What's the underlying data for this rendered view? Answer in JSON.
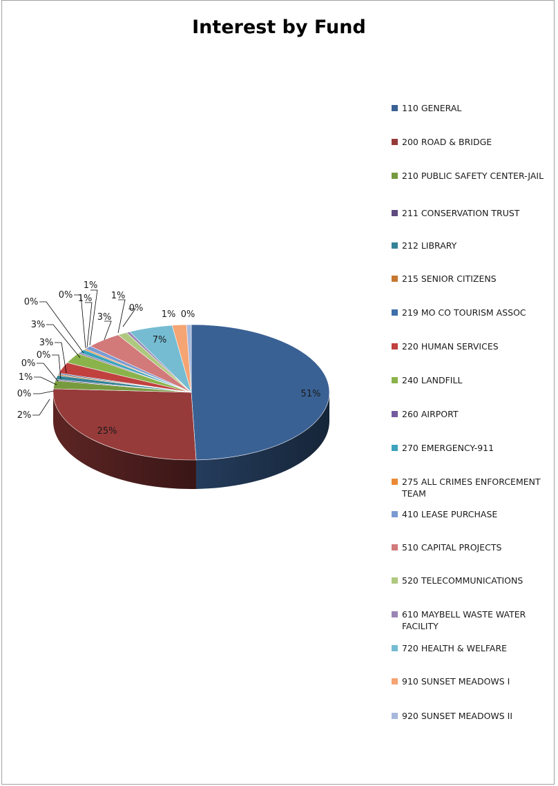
{
  "chart_data": {
    "type": "pie",
    "title": "Interest by Fund",
    "legend_position": "right",
    "slices": [
      {
        "label": "110 GENERAL",
        "value": 51,
        "display": "51%",
        "color": "#3A6194"
      },
      {
        "label": "200 ROAD & BRIDGE",
        "value": 25,
        "display": "25%",
        "color": "#963B3A"
      },
      {
        "label": "210 PUBLIC SAFETY CENTER-JAIL",
        "value": 2,
        "display": "2%",
        "color": "#789A3E"
      },
      {
        "label": "211 CONSERVATION TRUST",
        "value": 0,
        "display": "0%",
        "color": "#5F4A7F"
      },
      {
        "label": "212 LIBRARY",
        "value": 1,
        "display": "1%",
        "color": "#358396"
      },
      {
        "label": "215 SENIOR CITIZENS",
        "value": 0,
        "display": "0%",
        "color": "#C6772F"
      },
      {
        "label": "219 MO CO TOURISM ASSOC",
        "value": 0,
        "display": "0%",
        "color": "#3E6FA8"
      },
      {
        "label": "220 HUMAN SERVICES",
        "value": 3,
        "display": "3%",
        "color": "#C1413F"
      },
      {
        "label": "240 LANDFILL",
        "value": 3,
        "display": "3%",
        "color": "#8BB34B"
      },
      {
        "label": "260 AIRPORT",
        "value": 0,
        "display": "0%",
        "color": "#765A9E"
      },
      {
        "label": "270 EMERGENCY-911",
        "value": 1,
        "display": "1%",
        "color": "#3CA3BC"
      },
      {
        "label": "275 ALL CRIMES ENFORCEMENT TEAM",
        "value": 0,
        "display": "0%",
        "color": "#EB8A34"
      },
      {
        "label": "410 LEASE PURCHASE",
        "value": 1,
        "display": "1%",
        "color": "#7B9AD2"
      },
      {
        "label": "510 CAPITAL PROJECTS",
        "value": 3,
        "display": "3%",
        "color": "#D2797A"
      },
      {
        "label": "520 TELECOMMUNICATIONS",
        "value": 1,
        "display": "1%",
        "color": "#AFC87F"
      },
      {
        "label": "610 MAYBELL WASTE WATER FACILITY",
        "value": 0,
        "display": "0%",
        "color": "#9A86B5"
      },
      {
        "label": "720 HEALTH & WELFARE",
        "value": 7,
        "display": "7%",
        "color": "#75BCD2"
      },
      {
        "label": "910 SUNSET MEADOWS I",
        "value": 1,
        "display": "1%",
        "color": "#F5A473"
      },
      {
        "label": "920 SUNSET MEADOWS II",
        "value": 0,
        "display": "0%",
        "color": "#A6B8DB"
      }
    ]
  }
}
